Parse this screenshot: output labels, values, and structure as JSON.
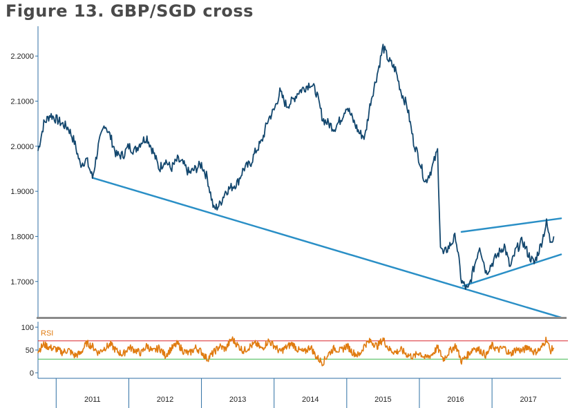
{
  "title": "Figure 13. GBP/SGD cross",
  "chart_data": {
    "type": "line",
    "title": "Figure 13. GBP/SGD cross",
    "ylim": [
      1.62,
      2.26
    ],
    "yticks": [
      "2.2000",
      "2.1000",
      "2.0000",
      "1.9000",
      "1.8000",
      "1.7000"
    ],
    "ytick_values": [
      2.2,
      2.1,
      2.0,
      1.9,
      1.8,
      1.7
    ],
    "x_categories": [
      "2011",
      "2012",
      "2013",
      "2014",
      "2015",
      "2016",
      "2017"
    ],
    "xlim": [
      2010.75,
      2017.95
    ],
    "series": [
      {
        "name": "GBP/SGD",
        "color": "#13476e",
        "points": [
          [
            2010.75,
            1.99
          ],
          [
            2010.83,
            2.05
          ],
          [
            2010.92,
            2.07
          ],
          [
            2011.0,
            2.06
          ],
          [
            2011.08,
            2.05
          ],
          [
            2011.17,
            2.04
          ],
          [
            2011.25,
            2.01
          ],
          [
            2011.33,
            1.96
          ],
          [
            2011.42,
            1.97
          ],
          [
            2011.5,
            1.93
          ],
          [
            2011.58,
            2.0
          ],
          [
            2011.67,
            2.05
          ],
          [
            2011.75,
            2.02
          ],
          [
            2011.83,
            1.98
          ],
          [
            2011.92,
            1.98
          ],
          [
            2012.0,
            2.0
          ],
          [
            2012.08,
            1.99
          ],
          [
            2012.17,
            2.01
          ],
          [
            2012.25,
            2.02
          ],
          [
            2012.33,
            1.99
          ],
          [
            2012.42,
            1.95
          ],
          [
            2012.5,
            1.97
          ],
          [
            2012.58,
            1.95
          ],
          [
            2012.67,
            1.97
          ],
          [
            2012.75,
            1.96
          ],
          [
            2012.83,
            1.94
          ],
          [
            2012.92,
            1.95
          ],
          [
            2013.0,
            1.96
          ],
          [
            2013.08,
            1.93
          ],
          [
            2013.17,
            1.86
          ],
          [
            2013.25,
            1.87
          ],
          [
            2013.33,
            1.9
          ],
          [
            2013.42,
            1.91
          ],
          [
            2013.5,
            1.92
          ],
          [
            2013.58,
            1.95
          ],
          [
            2013.67,
            1.96
          ],
          [
            2013.75,
            1.99
          ],
          [
            2013.83,
            2.01
          ],
          [
            2013.92,
            2.06
          ],
          [
            2014.0,
            2.08
          ],
          [
            2014.08,
            2.12
          ],
          [
            2014.17,
            2.09
          ],
          [
            2014.25,
            2.1
          ],
          [
            2014.33,
            2.12
          ],
          [
            2014.42,
            2.13
          ],
          [
            2014.5,
            2.14
          ],
          [
            2014.58,
            2.12
          ],
          [
            2014.67,
            2.06
          ],
          [
            2014.75,
            2.05
          ],
          [
            2014.83,
            2.04
          ],
          [
            2014.92,
            2.06
          ],
          [
            2015.0,
            2.09
          ],
          [
            2015.08,
            2.06
          ],
          [
            2015.17,
            2.03
          ],
          [
            2015.25,
            2.02
          ],
          [
            2015.33,
            2.1
          ],
          [
            2015.42,
            2.16
          ],
          [
            2015.5,
            2.22
          ],
          [
            2015.58,
            2.19
          ],
          [
            2015.67,
            2.17
          ],
          [
            2015.75,
            2.12
          ],
          [
            2015.83,
            2.09
          ],
          [
            2015.92,
            2.01
          ],
          [
            2016.0,
            1.97
          ],
          [
            2016.08,
            1.92
          ],
          [
            2016.17,
            1.95
          ],
          [
            2016.25,
            1.99
          ],
          [
            2016.29,
            1.78
          ],
          [
            2016.33,
            1.76
          ],
          [
            2016.42,
            1.78
          ],
          [
            2016.5,
            1.8
          ],
          [
            2016.58,
            1.7
          ],
          [
            2016.67,
            1.68
          ],
          [
            2016.75,
            1.73
          ],
          [
            2016.83,
            1.78
          ],
          [
            2016.92,
            1.72
          ],
          [
            2017.0,
            1.74
          ],
          [
            2017.08,
            1.76
          ],
          [
            2017.17,
            1.78
          ],
          [
            2017.25,
            1.73
          ],
          [
            2017.33,
            1.77
          ],
          [
            2017.42,
            1.79
          ],
          [
            2017.5,
            1.76
          ],
          [
            2017.58,
            1.74
          ],
          [
            2017.67,
            1.78
          ],
          [
            2017.75,
            1.83
          ],
          [
            2017.8,
            1.79
          ],
          [
            2017.85,
            1.8
          ]
        ]
      }
    ],
    "trendlines": [
      {
        "name": "support-line",
        "color": "#2a8fc6",
        "from": [
          2011.5,
          1.93
        ],
        "to": [
          2017.95,
          1.62
        ]
      },
      {
        "name": "channel-upper",
        "color": "#2a8fc6",
        "from": [
          2016.58,
          1.81
        ],
        "to": [
          2017.95,
          1.84
        ]
      },
      {
        "name": "channel-lower",
        "color": "#2a8fc6",
        "from": [
          2016.6,
          1.69
        ],
        "to": [
          2017.95,
          1.76
        ]
      }
    ],
    "rsi": {
      "label": "RSI",
      "color": "#e07b10",
      "ylim": [
        0,
        100
      ],
      "yticks": [
        "100",
        "50",
        "0"
      ],
      "ytick_values": [
        100,
        50,
        0
      ],
      "overbought": 70,
      "oversold": 30,
      "overbought_color": "#d9262b",
      "oversold_color": "#3fb84b",
      "points": [
        [
          2010.75,
          48
        ],
        [
          2010.83,
          62
        ],
        [
          2010.92,
          55
        ],
        [
          2011.0,
          52
        ],
        [
          2011.08,
          45
        ],
        [
          2011.17,
          50
        ],
        [
          2011.25,
          38
        ],
        [
          2011.33,
          42
        ],
        [
          2011.42,
          65
        ],
        [
          2011.5,
          58
        ],
        [
          2011.58,
          44
        ],
        [
          2011.67,
          55
        ],
        [
          2011.75,
          62
        ],
        [
          2011.83,
          48
        ],
        [
          2011.92,
          40
        ],
        [
          2012.0,
          56
        ],
        [
          2012.08,
          50
        ],
        [
          2012.17,
          43
        ],
        [
          2012.25,
          60
        ],
        [
          2012.33,
          46
        ],
        [
          2012.42,
          55
        ],
        [
          2012.5,
          38
        ],
        [
          2012.58,
          52
        ],
        [
          2012.67,
          64
        ],
        [
          2012.75,
          48
        ],
        [
          2012.83,
          42
        ],
        [
          2012.92,
          55
        ],
        [
          2013.0,
          46
        ],
        [
          2013.08,
          30
        ],
        [
          2013.17,
          45
        ],
        [
          2013.25,
          58
        ],
        [
          2013.33,
          52
        ],
        [
          2013.42,
          75
        ],
        [
          2013.5,
          60
        ],
        [
          2013.58,
          48
        ],
        [
          2013.67,
          58
        ],
        [
          2013.75,
          64
        ],
        [
          2013.83,
          52
        ],
        [
          2013.92,
          70
        ],
        [
          2014.0,
          60
        ],
        [
          2014.08,
          46
        ],
        [
          2014.17,
          56
        ],
        [
          2014.25,
          64
        ],
        [
          2014.33,
          50
        ],
        [
          2014.42,
          45
        ],
        [
          2014.5,
          58
        ],
        [
          2014.58,
          35
        ],
        [
          2014.67,
          22
        ],
        [
          2014.75,
          42
        ],
        [
          2014.83,
          54
        ],
        [
          2014.92,
          48
        ],
        [
          2015.0,
          60
        ],
        [
          2015.08,
          45
        ],
        [
          2015.17,
          38
        ],
        [
          2015.25,
          62
        ],
        [
          2015.33,
          70
        ],
        [
          2015.42,
          58
        ],
        [
          2015.5,
          74
        ],
        [
          2015.58,
          52
        ],
        [
          2015.67,
          45
        ],
        [
          2015.75,
          50
        ],
        [
          2015.83,
          40
        ],
        [
          2015.92,
          35
        ],
        [
          2016.0,
          45
        ],
        [
          2016.08,
          32
        ],
        [
          2016.17,
          40
        ],
        [
          2016.25,
          55
        ],
        [
          2016.33,
          30
        ],
        [
          2016.42,
          48
        ],
        [
          2016.5,
          60
        ],
        [
          2016.58,
          25
        ],
        [
          2016.67,
          40
        ],
        [
          2016.75,
          55
        ],
        [
          2016.83,
          50
        ],
        [
          2016.92,
          38
        ],
        [
          2017.0,
          60
        ],
        [
          2017.08,
          50
        ],
        [
          2017.17,
          55
        ],
        [
          2017.25,
          40
        ],
        [
          2017.33,
          52
        ],
        [
          2017.42,
          48
        ],
        [
          2017.5,
          58
        ],
        [
          2017.58,
          45
        ],
        [
          2017.67,
          52
        ],
        [
          2017.75,
          75
        ],
        [
          2017.8,
          48
        ],
        [
          2017.85,
          55
        ]
      ]
    }
  }
}
